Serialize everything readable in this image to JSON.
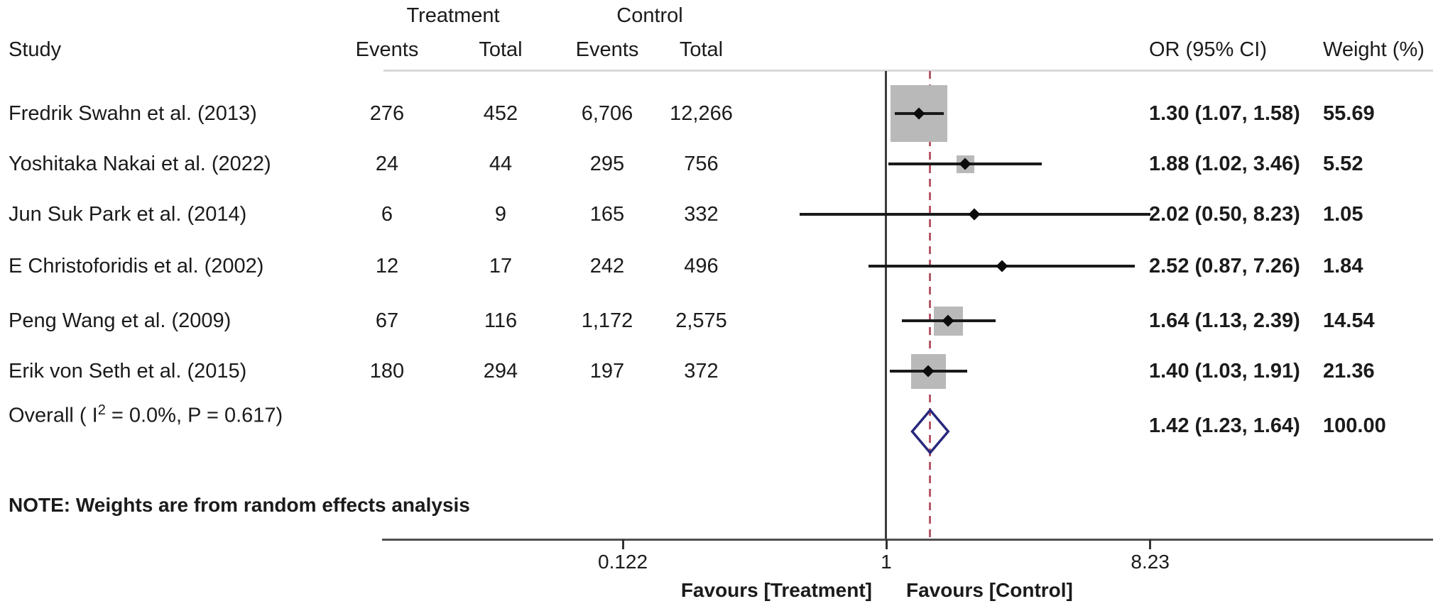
{
  "header": {
    "group_treatment": "Treatment",
    "group_control": "Control",
    "study": "Study",
    "treatment_events": "Events",
    "treatment_total": "Total",
    "control_events": "Events",
    "control_total": "Total",
    "or_ci": "OR (95% CI)",
    "weight": "Weight (%)"
  },
  "chart_data": {
    "type": "forest",
    "x_axis": {
      "scale": "log",
      "ticks": [
        {
          "value": 0.122,
          "label": "0.122"
        },
        {
          "value": 1,
          "label": "1"
        },
        {
          "value": 8.23,
          "label": "8.23"
        }
      ]
    },
    "studies": [
      {
        "study": "Fredrik Swahn et al. (2013)",
        "treatment_events": "276",
        "treatment_total": "452",
        "control_events": "6,706",
        "control_total": "12,266",
        "or": 1.3,
        "ci_low": 1.07,
        "ci_high": 1.58,
        "weight": 55.69,
        "or_ci_label": "1.30 (1.07, 1.58)",
        "weight_label": "55.69"
      },
      {
        "study": "Yoshitaka Nakai et al. (2022)",
        "treatment_events": "24",
        "treatment_total": "44",
        "control_events": "295",
        "control_total": "756",
        "or": 1.88,
        "ci_low": 1.02,
        "ci_high": 3.46,
        "weight": 5.52,
        "or_ci_label": "1.88 (1.02, 3.46)",
        "weight_label": "5.52"
      },
      {
        "study": "Jun Suk Park et al. (2014)",
        "treatment_events": "6",
        "treatment_total": "9",
        "control_events": "165",
        "control_total": "332",
        "or": 2.02,
        "ci_low": 0.5,
        "ci_high": 8.23,
        "weight": 1.05,
        "or_ci_label": "2.02 (0.50, 8.23)",
        "weight_label": "1.05"
      },
      {
        "study": "E Christoforidis et al. (2002)",
        "treatment_events": "12",
        "treatment_total": "17",
        "control_events": "242",
        "control_total": "496",
        "or": 2.52,
        "ci_low": 0.87,
        "ci_high": 7.26,
        "weight": 1.84,
        "or_ci_label": "2.52 (0.87, 7.26)",
        "weight_label": "1.84"
      },
      {
        "study": "Peng Wang et al. (2009)",
        "treatment_events": "67",
        "treatment_total": "116",
        "control_events": "1,172",
        "control_total": "2,575",
        "or": 1.64,
        "ci_low": 1.13,
        "ci_high": 2.39,
        "weight": 14.54,
        "or_ci_label": "1.64 (1.13, 2.39)",
        "weight_label": "14.54"
      },
      {
        "study": "Erik von Seth et al. (2015)",
        "treatment_events": "180",
        "treatment_total": "294",
        "control_events": "197",
        "control_total": "372",
        "or": 1.4,
        "ci_low": 1.03,
        "ci_high": 1.91,
        "weight": 21.36,
        "or_ci_label": "1.40 (1.03, 1.91)",
        "weight_label": "21.36"
      }
    ],
    "overall": {
      "label_prefix": "Overall  (  I",
      "label_sup": "2",
      "label_suffix": " = 0.0%, P = 0.617)",
      "or": 1.42,
      "ci_low": 1.23,
      "ci_high": 1.64,
      "weight": 100.0,
      "or_ci_label": "1.42 (1.23, 1.64)",
      "weight_label": "100.00"
    },
    "favours_left": "Favours [Treatment]",
    "favours_right": "Favours [Control]",
    "note": "NOTE: Weights are from random effects analysis"
  },
  "colors": {
    "weight_box": "#b9b9b9",
    "diamond_stroke": "#28287d",
    "dashed_line": "#b55868",
    "axis": "#4f4f4f",
    "header_rule": "#d9d9d9"
  }
}
